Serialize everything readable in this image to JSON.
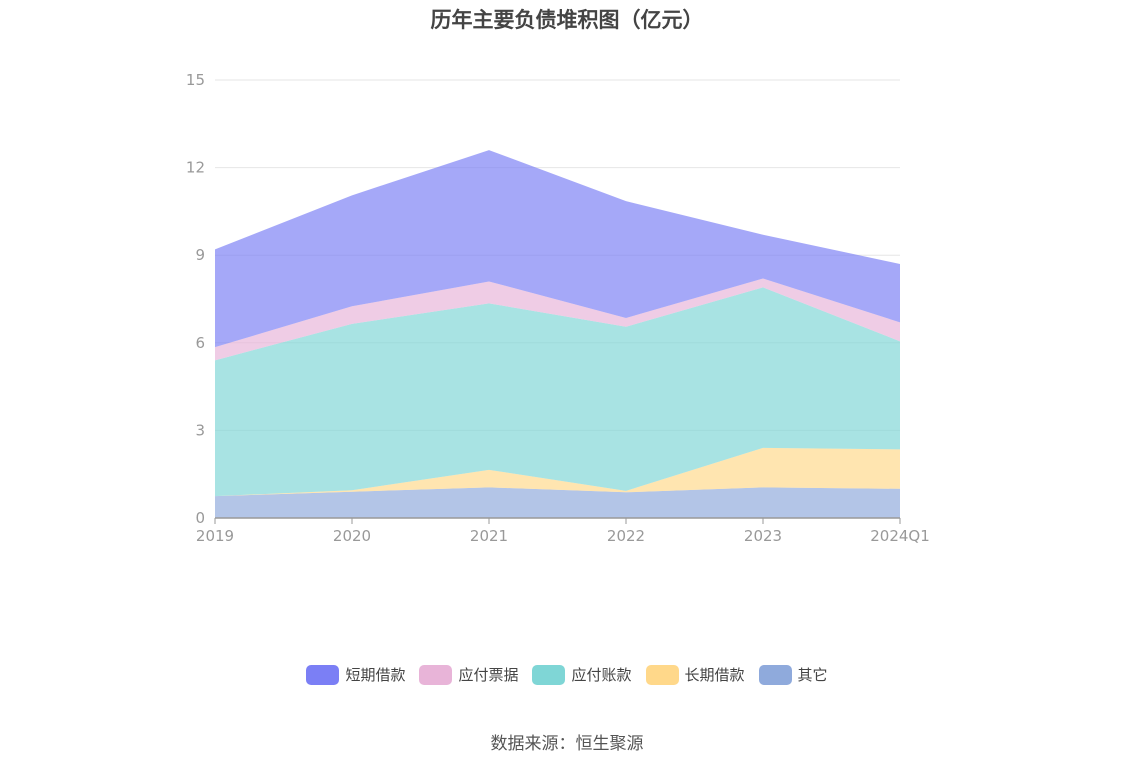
{
  "title": "历年主要负债堆积图（亿元）",
  "source": "数据来源：恒生聚源",
  "chart_data": {
    "type": "area",
    "stacked": true,
    "categories": [
      "2019",
      "2020",
      "2021",
      "2022",
      "2023",
      "2024Q1"
    ],
    "ylim": [
      0,
      15
    ],
    "yticks": [
      0,
      3,
      6,
      9,
      12,
      15
    ],
    "grid": true,
    "legend_position": "bottom",
    "series": [
      {
        "name": "其它",
        "color": "#8faadc",
        "values": [
          0.75,
          0.9,
          1.05,
          0.88,
          1.05,
          1.0
        ]
      },
      {
        "name": "长期借款",
        "color": "#ffd88a",
        "values": [
          0.0,
          0.05,
          0.6,
          0.05,
          1.35,
          1.35
        ]
      },
      {
        "name": "应付账款",
        "color": "#7fd6d6",
        "values": [
          4.65,
          5.7,
          5.7,
          5.62,
          5.5,
          3.7
        ]
      },
      {
        "name": "应付票据",
        "color": "#e8b4d8",
        "values": [
          0.45,
          0.6,
          0.75,
          0.3,
          0.3,
          0.65
        ]
      },
      {
        "name": "短期借款",
        "color": "#7b7ff5",
        "values": [
          3.35,
          3.8,
          4.5,
          4.0,
          1.5,
          2.0
        ]
      }
    ],
    "legend_order": [
      "短期借款",
      "应付票据",
      "应付账款",
      "长期借款",
      "其它"
    ]
  }
}
